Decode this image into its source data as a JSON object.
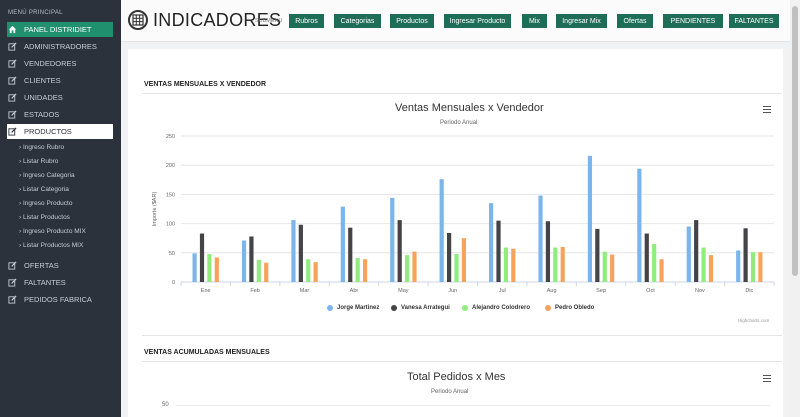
{
  "sidebar": {
    "menu_title": "MENÚ PRINCIPAL",
    "items": [
      {
        "label": "PANEL DISTRIDIET",
        "icon": "home-icon"
      },
      {
        "label": "ADMINISTRADORES",
        "icon": "edit-icon"
      },
      {
        "label": "VENDEDORES",
        "icon": "edit-icon"
      },
      {
        "label": "CLIENTES",
        "icon": "edit-icon"
      },
      {
        "label": "UNIDADES",
        "icon": "edit-icon"
      },
      {
        "label": "ESTADOS",
        "icon": "edit-icon"
      },
      {
        "label": "PRODUCTOS",
        "icon": "edit-icon"
      },
      {
        "label": "OFERTAS",
        "icon": "edit-icon"
      },
      {
        "label": "FALTANTES",
        "icon": "edit-icon"
      },
      {
        "label": "PEDIDOS FABRICA",
        "icon": "edit-icon"
      }
    ],
    "subitems": [
      "Ingreso Rubro",
      "Listar Rubro",
      "Ingreso Categoria",
      "Listar Categoria",
      "Ingreso Producto",
      "Listar Productos",
      "Ingreso Producto MIX",
      "Listar Productos MIX"
    ]
  },
  "header": {
    "title": "INDICADORES",
    "submenu_label": "SUBMENU",
    "buttons": [
      "Rubros",
      "Categorias",
      "Productos",
      "Ingresar Producto",
      "Mix",
      "Ingresar Mix",
      "Ofertas",
      "PENDIENTES",
      "FALTANTES"
    ]
  },
  "sections": {
    "first": "VENTAS MENSUALES X VENDEDOR",
    "second": "VENTAS ACUMULADAS MENSUALES"
  },
  "chart1": {
    "title": "Ventas Mensuales x Vendedor",
    "subtitle": "Periodo Anual",
    "credits": "Highcharts.com"
  },
  "chart2": {
    "title": "Total Pedidos x Mes",
    "subtitle": "Periodo Anual",
    "first_tick": "50"
  },
  "colors": {
    "sidebar_bg": "#2b323c",
    "accent_green": "#1f8f6e",
    "button_green": "#1e6e57",
    "series": [
      "#7cb5ec",
      "#434348",
      "#90ed7d",
      "#f7a35c"
    ]
  },
  "chart_data": {
    "type": "bar",
    "title": "Ventas Mensuales x Vendedor",
    "subtitle": "Periodo Anual",
    "xlabel": "",
    "ylabel": "Importe ($AR)",
    "ylim": [
      0,
      250
    ],
    "yticks": [
      "0",
      "50",
      "100",
      "150",
      "200",
      "250"
    ],
    "categories": [
      "Ene",
      "Feb",
      "Mar",
      "Abr",
      "May",
      "Jun",
      "Jul",
      "Aug",
      "Sep",
      "Oct",
      "Nov",
      "Dic"
    ],
    "series": [
      {
        "name": "Jorge Martinez",
        "values": [
          49,
          71,
          106,
          129,
          144,
          176,
          135,
          148,
          216,
          194,
          95,
          54
        ]
      },
      {
        "name": "Vanesa Arrategui",
        "values": [
          83,
          78,
          98,
          93,
          106,
          84,
          105,
          104,
          91,
          83,
          106,
          92
        ]
      },
      {
        "name": "Alejandro Colodrero",
        "values": [
          48,
          38,
          39,
          41,
          46,
          48,
          59,
          59,
          52,
          65,
          59,
          51
        ]
      },
      {
        "name": "Pedro Obledo",
        "values": [
          42,
          33,
          34,
          39,
          52,
          75,
          57,
          60,
          47,
          39,
          46,
          51
        ]
      }
    ],
    "grid": true,
    "legend": "bottom-center"
  }
}
